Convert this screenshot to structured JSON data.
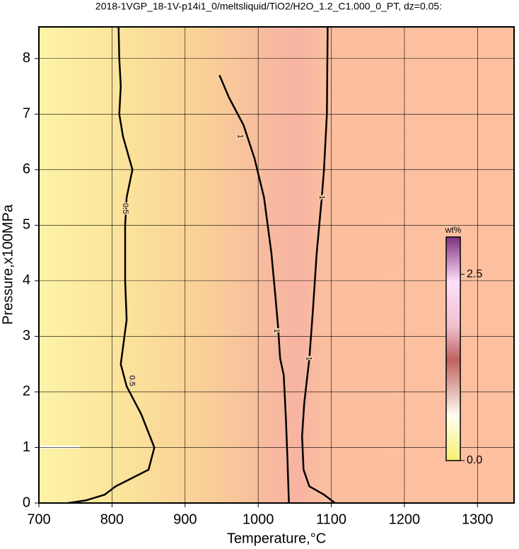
{
  "chart_data": {
    "type": "contour",
    "title": "2018-1VGP_18-1V-p14i1_0/meltsliquid/TiO2/H2O_1.2_C1.000_0_PT, dz=0.05:",
    "x_label": "Temperature,°C",
    "y_label": "Pressure,x100MPa",
    "xlim": [
      700,
      1350
    ],
    "ylim": [
      0,
      8.57
    ],
    "xticks": [
      700,
      800,
      900,
      1000,
      1100,
      1200,
      1300
    ],
    "yticks": [
      0,
      1,
      2,
      3,
      4,
      5,
      6,
      7,
      8
    ],
    "grid": true,
    "series": [
      {
        "label": "0.5",
        "color": "#000000",
        "x": [
          809,
          810,
          812,
          810,
          815,
          828,
          820,
          818,
          818,
          820,
          812,
          820,
          840,
          858,
          850,
          820,
          805,
          790,
          765,
          740
        ],
        "y": [
          8.57,
          8.0,
          7.5,
          7.0,
          6.6,
          6.0,
          5.5,
          5.0,
          4.0,
          3.3,
          2.5,
          2.1,
          1.6,
          1.0,
          0.6,
          0.4,
          0.3,
          0.15,
          0.05,
          0.0
        ],
        "label_at": [
          [
            818,
            5.3
          ],
          [
            827,
            2.2
          ]
        ]
      },
      {
        "label": "1",
        "color": "#000000",
        "x": [
          947,
          960,
          980,
          995,
          1008,
          1018,
          1023,
          1027,
          1030,
          1035,
          1038,
          1040,
          1042
        ],
        "y": [
          7.7,
          7.3,
          6.8,
          6.2,
          5.5,
          4.5,
          3.8,
          3.2,
          2.6,
          2.3,
          1.5,
          0.8,
          0.0
        ],
        "label_at": [
          [
            975,
            6.6
          ],
          [
            1025,
            3.1
          ]
        ]
      },
      {
        "label": "1",
        "color": "#000000",
        "x": [
          1095,
          1094,
          1090,
          1087,
          1080,
          1075,
          1070,
          1063,
          1060,
          1062,
          1070,
          1090,
          1105
        ],
        "y": [
          8.57,
          7.0,
          6.0,
          5.5,
          4.5,
          3.5,
          2.6,
          1.8,
          1.2,
          0.6,
          0.3,
          0.15,
          0.0
        ],
        "label_at": [
          [
            1087,
            5.5
          ],
          [
            1069,
            2.6
          ]
        ]
      }
    ],
    "colorbar": {
      "label": "wt%",
      "lim": [
        0,
        3.0
      ],
      "ticks": [
        {
          "value": 0,
          "label": "0.0"
        },
        2.5
      ]
    }
  }
}
